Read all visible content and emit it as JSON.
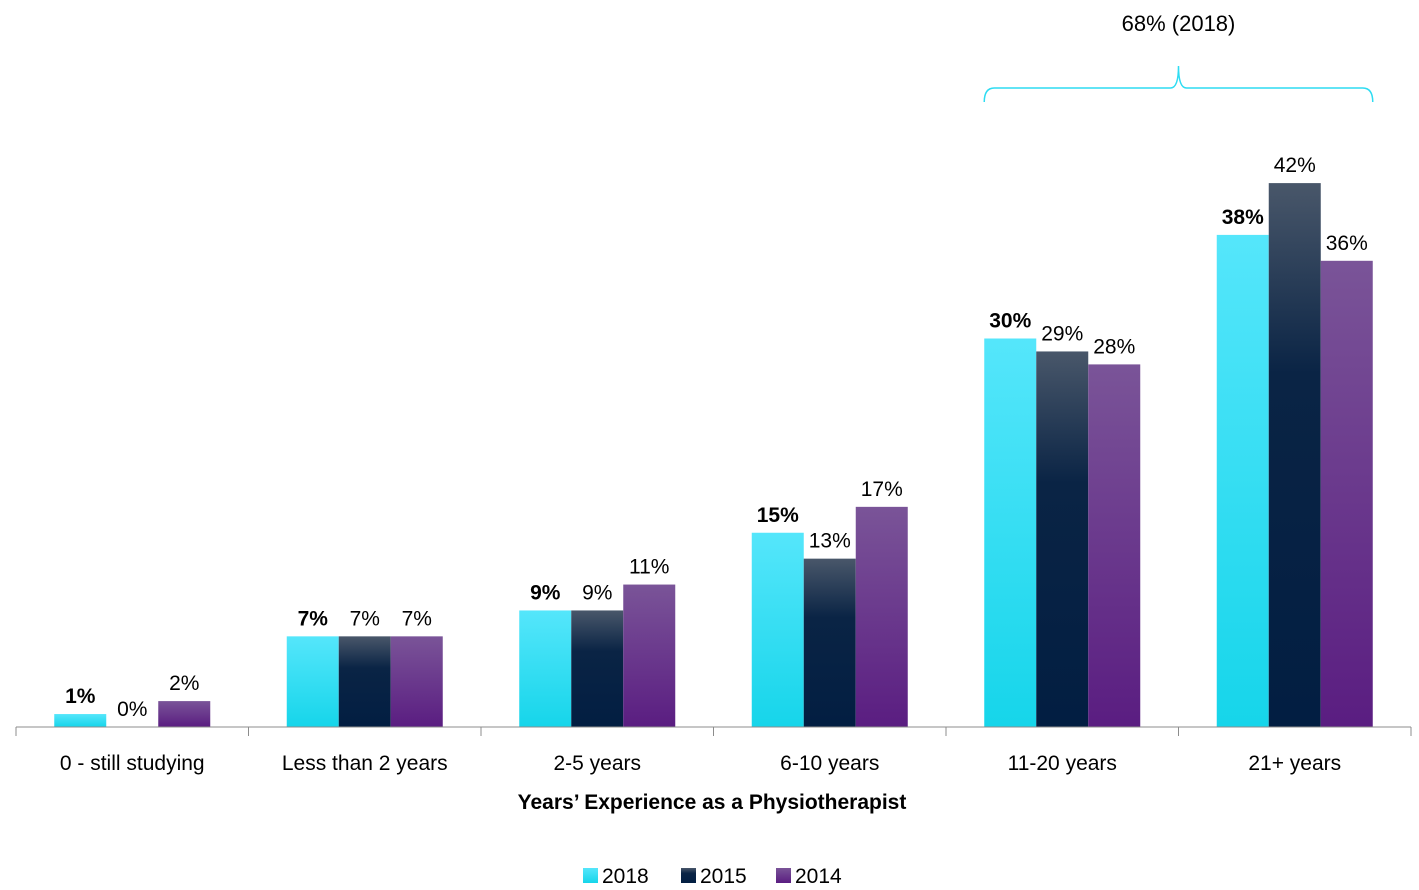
{
  "chart_data": {
    "type": "bar",
    "xlabel": "Years’ Experience as a Physiotherapist",
    "ylabel": "",
    "ylim": [
      0,
      45
    ],
    "grid": false,
    "legend_position": "bottom",
    "categories": [
      "0 - still studying",
      "Less than 2 years",
      "2-5 years",
      "6-10 years",
      "11-20 years",
      "21+ years"
    ],
    "series": [
      {
        "name": "2018",
        "color": "#2edcf2",
        "values": [
          1,
          7,
          9,
          15,
          30,
          38
        ],
        "labels": [
          "1%",
          "7%",
          "9%",
          "15%",
          "30%",
          "38%"
        ],
        "bold_labels": true
      },
      {
        "name": "2015",
        "color": "#0d2748",
        "values": [
          0,
          7,
          9,
          13,
          29,
          42
        ],
        "labels": [
          "0%",
          "7%",
          "9%",
          "13%",
          "29%",
          "42%"
        ],
        "bold_labels": false
      },
      {
        "name": "2014",
        "color": "#652d8a",
        "values": [
          2,
          7,
          11,
          17,
          28,
          36
        ],
        "labels": [
          "2%",
          "7%",
          "11%",
          "17%",
          "28%",
          "36%"
        ],
        "bold_labels": false
      }
    ],
    "annotation": {
      "text": "68% (2018)",
      "spans_categories": [
        "11-20 years",
        "21+ years"
      ],
      "color": "#2edcf2"
    }
  }
}
